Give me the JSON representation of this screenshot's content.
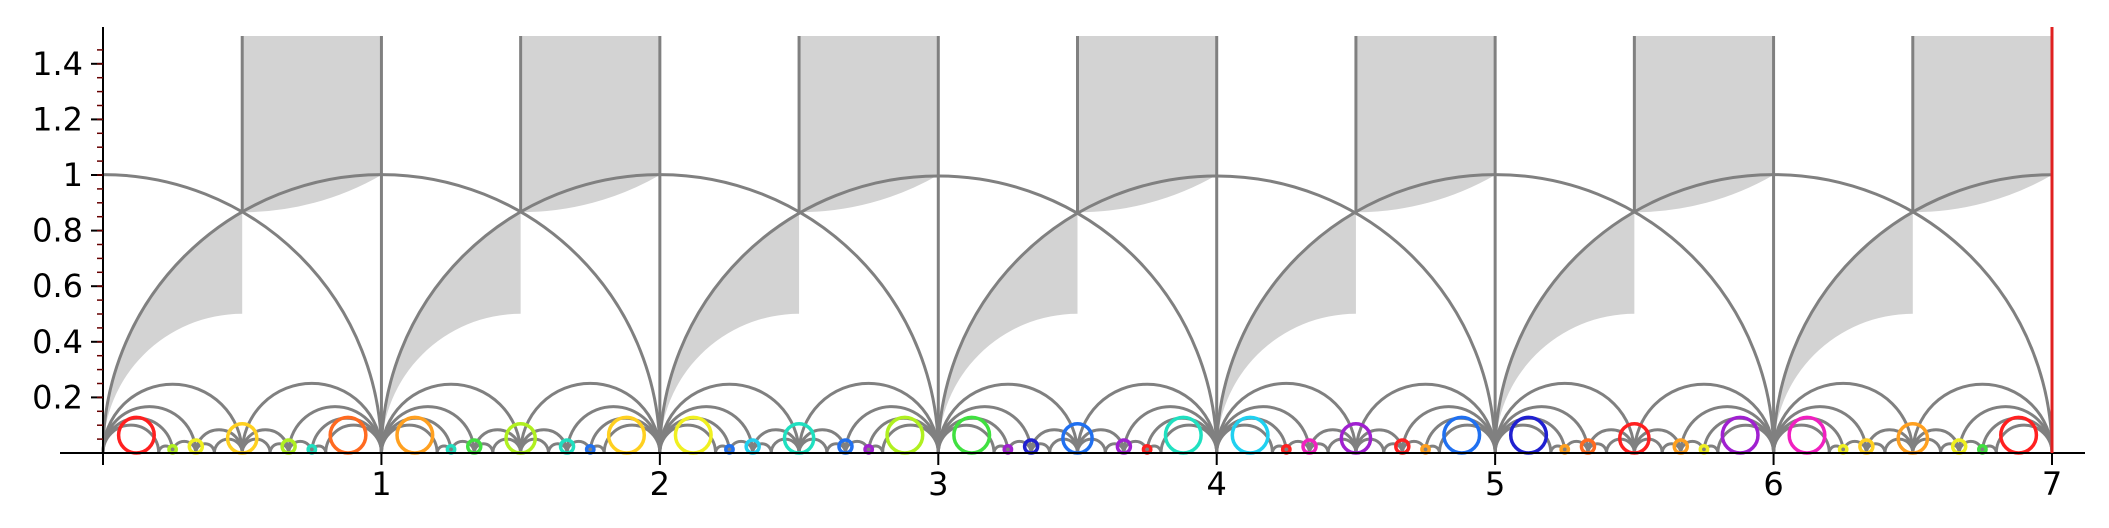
{
  "chart_data": {
    "type": "diagram",
    "description_visible": "Farey tessellation of the upper half-plane (hyperbolic triangles) with colored horocycles",
    "xlim": [
      0,
      7
    ],
    "ylim": [
      0,
      1.5
    ],
    "x_ticks": [
      "1",
      "2",
      "3",
      "4",
      "5",
      "6",
      "7"
    ],
    "x_tick_values": [
      1,
      2,
      3,
      4,
      5,
      6,
      7
    ],
    "y_ticks": [
      "0.2",
      "0.4",
      "0.6",
      "0.8",
      "1",
      "1.2",
      "1.4"
    ],
    "y_tick_values": [
      0.2,
      0.4,
      0.6,
      0.8,
      1.0,
      1.2,
      1.4
    ],
    "grid": false,
    "colors": {
      "geodesic": "#808080",
      "shade": "#d3d3d3",
      "boundary": "#e02020",
      "axis": "#000000"
    },
    "horocycle_palette": [
      "#ff2020",
      "#ff6a20",
      "#ffa020",
      "#ffd020",
      "#f0f020",
      "#b0f020",
      "#40e040",
      "#20e0c0",
      "#20d0f0",
      "#2070f0",
      "#2020d0",
      "#a020d0",
      "#f020c0"
    ],
    "farey_depth": 5
  }
}
